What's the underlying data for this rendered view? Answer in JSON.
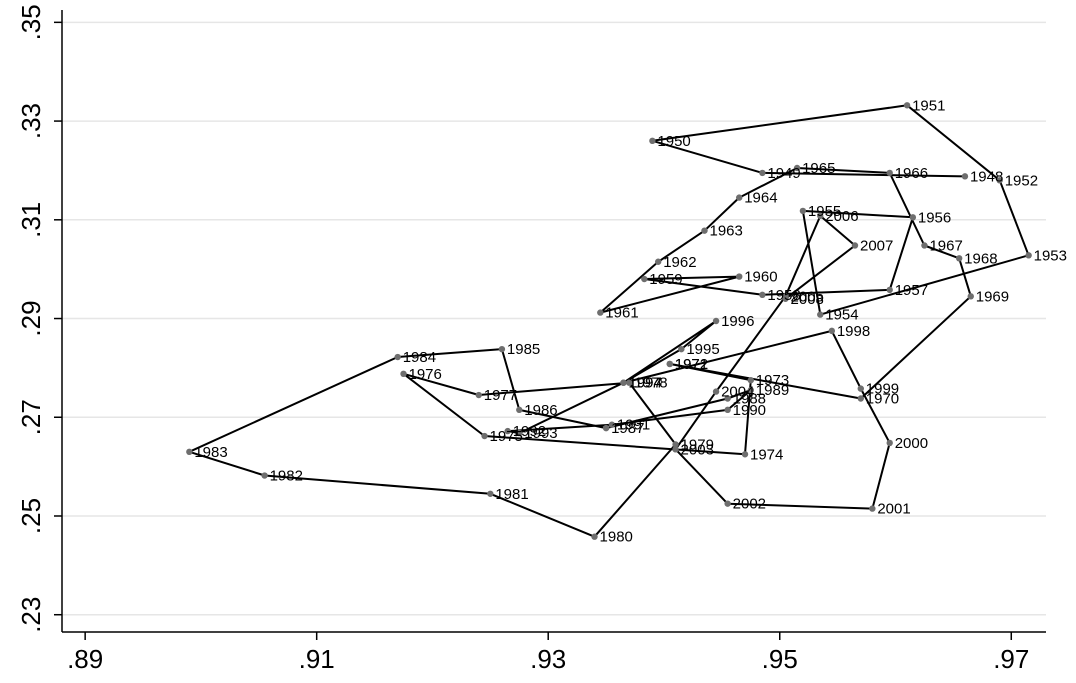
{
  "chart_data": {
    "type": "line",
    "title": "",
    "xlabel": "",
    "ylabel": "",
    "xlim": [
      0.888,
      0.973
    ],
    "ylim": [
      0.2265,
      0.3525
    ],
    "x_ticks": [
      ".89",
      ".91",
      ".93",
      ".95",
      ".97"
    ],
    "y_ticks": [
      ".23",
      ".25",
      ".27",
      ".29",
      ".31",
      ".33",
      ".35"
    ],
    "grid": "horizontal",
    "series": [
      {
        "points": [
          {
            "year": "1948",
            "x": 0.966,
            "y": 0.3188
          },
          {
            "year": "1949",
            "x": 0.9485,
            "y": 0.3195
          },
          {
            "year": "1950",
            "x": 0.939,
            "y": 0.326
          },
          {
            "year": "1951",
            "x": 0.961,
            "y": 0.3332
          },
          {
            "year": "1952",
            "x": 0.969,
            "y": 0.318
          },
          {
            "year": "1953",
            "x": 0.9715,
            "y": 0.3028
          },
          {
            "year": "1954",
            "x": 0.9535,
            "y": 0.2908
          },
          {
            "year": "1955",
            "x": 0.952,
            "y": 0.3118
          },
          {
            "year": "1956",
            "x": 0.9615,
            "y": 0.3105
          },
          {
            "year": "1957",
            "x": 0.9595,
            "y": 0.2958
          },
          {
            "year": "1958",
            "x": 0.9485,
            "y": 0.2948
          },
          {
            "year": "1959",
            "x": 0.9383,
            "y": 0.298
          },
          {
            "year": "1960",
            "x": 0.9465,
            "y": 0.2985
          },
          {
            "year": "1961",
            "x": 0.9345,
            "y": 0.2912
          },
          {
            "year": "1962",
            "x": 0.9395,
            "y": 0.3015
          },
          {
            "year": "1963",
            "x": 0.9435,
            "y": 0.3078
          },
          {
            "year": "1964",
            "x": 0.9465,
            "y": 0.3145
          },
          {
            "year": "1965",
            "x": 0.9515,
            "y": 0.3205
          },
          {
            "year": "1966",
            "x": 0.9595,
            "y": 0.3195
          },
          {
            "year": "1967",
            "x": 0.9625,
            "y": 0.3048
          },
          {
            "year": "1968",
            "x": 0.9655,
            "y": 0.3022
          },
          {
            "year": "1969",
            "x": 0.9665,
            "y": 0.2945
          },
          {
            "year": "1970",
            "x": 0.957,
            "y": 0.2738
          },
          {
            "year": "1971",
            "x": 0.9405,
            "y": 0.2808
          },
          {
            "year": "1972",
            "x": 0.9405,
            "y": 0.2808
          },
          {
            "year": "1973",
            "x": 0.9475,
            "y": 0.2775
          },
          {
            "year": "1974",
            "x": 0.947,
            "y": 0.2625
          },
          {
            "year": "1975",
            "x": 0.9245,
            "y": 0.2662
          },
          {
            "year": "1976",
            "x": 0.9175,
            "y": 0.2788
          },
          {
            "year": "1977",
            "x": 0.924,
            "y": 0.2745
          },
          {
            "year": "1978",
            "x": 0.937,
            "y": 0.277
          },
          {
            "year": "1979",
            "x": 0.941,
            "y": 0.2645
          },
          {
            "year": "1980",
            "x": 0.934,
            "y": 0.2458
          },
          {
            "year": "1981",
            "x": 0.925,
            "y": 0.2545
          },
          {
            "year": "1982",
            "x": 0.9055,
            "y": 0.2582
          },
          {
            "year": "1983",
            "x": 0.899,
            "y": 0.263
          },
          {
            "year": "1984",
            "x": 0.917,
            "y": 0.2822
          },
          {
            "year": "1985",
            "x": 0.926,
            "y": 0.2838
          },
          {
            "year": "1986",
            "x": 0.9275,
            "y": 0.2715
          },
          {
            "year": "1987",
            "x": 0.935,
            "y": 0.2678
          },
          {
            "year": "1988",
            "x": 0.9455,
            "y": 0.2738
          },
          {
            "year": "1989",
            "x": 0.9475,
            "y": 0.2755
          },
          {
            "year": "1990",
            "x": 0.9455,
            "y": 0.2715
          },
          {
            "year": "1991",
            "x": 0.9355,
            "y": 0.2685
          },
          {
            "year": "1992",
            "x": 0.9265,
            "y": 0.2672
          },
          {
            "year": "1993",
            "x": 0.9275,
            "y": 0.2668
          },
          {
            "year": "1994",
            "x": 0.9365,
            "y": 0.277
          },
          {
            "year": "1995",
            "x": 0.9415,
            "y": 0.2838
          },
          {
            "year": "1996",
            "x": 0.9445,
            "y": 0.2895
          },
          {
            "year": "1997",
            "x": 0.9365,
            "y": 0.277
          },
          {
            "year": "1998",
            "x": 0.9545,
            "y": 0.2875
          },
          {
            "year": "1999",
            "x": 0.957,
            "y": 0.2758
          },
          {
            "year": "2000",
            "x": 0.9595,
            "y": 0.2648
          },
          {
            "year": "2001",
            "x": 0.958,
            "y": 0.2515
          },
          {
            "year": "2002",
            "x": 0.9455,
            "y": 0.2525
          },
          {
            "year": "2003",
            "x": 0.941,
            "y": 0.2635
          },
          {
            "year": "2004",
            "x": 0.9445,
            "y": 0.2752
          },
          {
            "year": "2005",
            "x": 0.9505,
            "y": 0.2945
          },
          {
            "year": "2006",
            "x": 0.9535,
            "y": 0.3108
          },
          {
            "year": "2007",
            "x": 0.9565,
            "y": 0.3048
          },
          {
            "year": "2008",
            "x": 0.9505,
            "y": 0.294
          }
        ],
        "labels": [
          {
            "text": "1948",
            "x": 0.966,
            "y": 0.3188
          },
          {
            "text": "1949",
            "x": 0.9485,
            "y": 0.3195
          },
          {
            "text": "1950",
            "x": 0.939,
            "y": 0.326
          },
          {
            "text": "1951",
            "x": 0.961,
            "y": 0.3332
          },
          {
            "text": "1952",
            "x": 0.969,
            "y": 0.318
          },
          {
            "text": "1953",
            "x": 0.9715,
            "y": 0.3028
          },
          {
            "text": "1954",
            "x": 0.9535,
            "y": 0.2908
          },
          {
            "text": "1955",
            "x": 0.952,
            "y": 0.3118
          },
          {
            "text": "1956",
            "x": 0.9615,
            "y": 0.3105
          },
          {
            "text": "1957",
            "x": 0.9595,
            "y": 0.2958
          },
          {
            "text": "1958",
            "x": 0.9485,
            "y": 0.2948
          },
          {
            "text": "1959",
            "x": 0.9383,
            "y": 0.298
          },
          {
            "text": "1960",
            "x": 0.9465,
            "y": 0.2985
          },
          {
            "text": "1961",
            "x": 0.9345,
            "y": 0.2912
          },
          {
            "text": "1962",
            "x": 0.9395,
            "y": 0.3015
          },
          {
            "text": "1963",
            "x": 0.9435,
            "y": 0.3078
          },
          {
            "text": "1964",
            "x": 0.9465,
            "y": 0.3145
          },
          {
            "text": "1965",
            "x": 0.9515,
            "y": 0.3205
          },
          {
            "text": "1966",
            "x": 0.9595,
            "y": 0.3195
          },
          {
            "text": "1967",
            "x": 0.9625,
            "y": 0.3048
          },
          {
            "text": "1968",
            "x": 0.9655,
            "y": 0.3022
          },
          {
            "text": "1969",
            "x": 0.9665,
            "y": 0.2945
          },
          {
            "text": "1970",
            "x": 0.957,
            "y": 0.2738
          },
          {
            "text": "1971",
            "x": 0.9405,
            "y": 0.2808
          },
          {
            "text": "1972",
            "x": 0.9405,
            "y": 0.2808
          },
          {
            "text": "1973",
            "x": 0.9475,
            "y": 0.2775
          },
          {
            "text": "1974",
            "x": 0.947,
            "y": 0.2625
          },
          {
            "text": "1975",
            "x": 0.9245,
            "y": 0.2662
          },
          {
            "text": "1976",
            "x": 0.9175,
            "y": 0.2788
          },
          {
            "text": "1977",
            "x": 0.924,
            "y": 0.2745
          },
          {
            "text": "1978",
            "x": 0.937,
            "y": 0.277
          },
          {
            "text": "1979",
            "x": 0.941,
            "y": 0.2645
          },
          {
            "text": "1980",
            "x": 0.934,
            "y": 0.2458
          },
          {
            "text": "1981",
            "x": 0.925,
            "y": 0.2545
          },
          {
            "text": "1982",
            "x": 0.9055,
            "y": 0.2582
          },
          {
            "text": "1983",
            "x": 0.899,
            "y": 0.263
          },
          {
            "text": "1984",
            "x": 0.917,
            "y": 0.2822
          },
          {
            "text": "1985",
            "x": 0.926,
            "y": 0.2838
          },
          {
            "text": "1986",
            "x": 0.9275,
            "y": 0.2715
          },
          {
            "text": "1987",
            "x": 0.935,
            "y": 0.2678
          },
          {
            "text": "1988",
            "x": 0.9455,
            "y": 0.2738
          },
          {
            "text": "1989",
            "x": 0.9475,
            "y": 0.2755
          },
          {
            "text": "1990",
            "x": 0.9455,
            "y": 0.2715
          },
          {
            "text": "1991",
            "x": 0.9355,
            "y": 0.2685
          },
          {
            "text": "1992",
            "x": 0.9265,
            "y": 0.2672
          },
          {
            "text": "1993",
            "x": 0.9275,
            "y": 0.2668
          },
          {
            "text": "1994",
            "x": 0.9365,
            "y": 0.277
          },
          {
            "text": "1995",
            "x": 0.9415,
            "y": 0.2838
          },
          {
            "text": "1996",
            "x": 0.9445,
            "y": 0.2895
          },
          {
            "text": "1997",
            "x": 0.9365,
            "y": 0.277
          },
          {
            "text": "1998",
            "x": 0.9545,
            "y": 0.2875
          },
          {
            "text": "1999",
            "x": 0.957,
            "y": 0.2758
          },
          {
            "text": "2000",
            "x": 0.9595,
            "y": 0.2648
          },
          {
            "text": "2001",
            "x": 0.958,
            "y": 0.2515
          },
          {
            "text": "2002",
            "x": 0.9455,
            "y": 0.2525
          },
          {
            "text": "2003",
            "x": 0.941,
            "y": 0.2635
          },
          {
            "text": "2004",
            "x": 0.9445,
            "y": 0.2752
          },
          {
            "text": "2005",
            "x": 0.9505,
            "y": 0.2945
          },
          {
            "text": "2006",
            "x": 0.9535,
            "y": 0.3108
          },
          {
            "text": "2007",
            "x": 0.9565,
            "y": 0.3048
          },
          {
            "text": "2008",
            "x": 0.9505,
            "y": 0.294
          }
        ]
      }
    ]
  }
}
